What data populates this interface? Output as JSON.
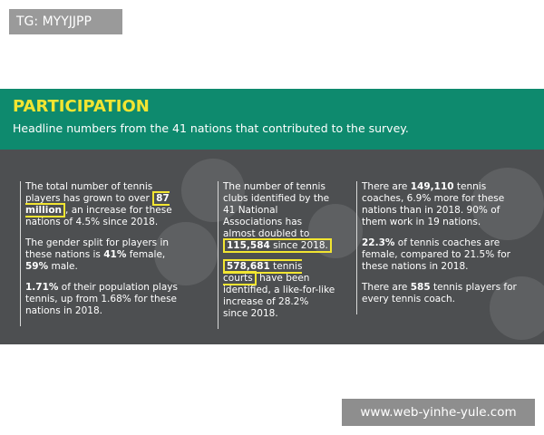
{
  "tag": "TG: MYYJJPP",
  "header": {
    "title": "PARTICIPATION",
    "subtitle": "Headline numbers from the 41 nations that contributed to the survey."
  },
  "columns": [
    [
      [
        "The total number of tennis players has grown to over ",
        "87 million",
        ", an increase for these nations of 4.5% since 2018."
      ],
      [
        "The gender split for players in these nations is ",
        "41%",
        " female, ",
        "59%",
        " male."
      ],
      [
        "1.71%",
        " of their population plays tennis, up from 1.68% for these nations in 2018."
      ]
    ],
    [
      [
        "The number of tennis clubs identified by the 41 National Associations has almost doubled to ",
        "115,584",
        " since 2018."
      ],
      [
        "578,681",
        " tennis courts",
        " have been identified, a like-for-like increase of 28.2% since 2018."
      ]
    ],
    [
      [
        "There are ",
        "149,110",
        " tennis coaches, 6.9% more for these nations than in 2018. 90% of them work in 19 nations."
      ],
      [
        "22.3%",
        " of tennis coaches are female, compared to 21.5% for these nations in 2018."
      ],
      [
        "There are ",
        "585",
        " tennis players for every tennis coach."
      ]
    ]
  ],
  "watermark": "www.web-yinhe-yule.com"
}
